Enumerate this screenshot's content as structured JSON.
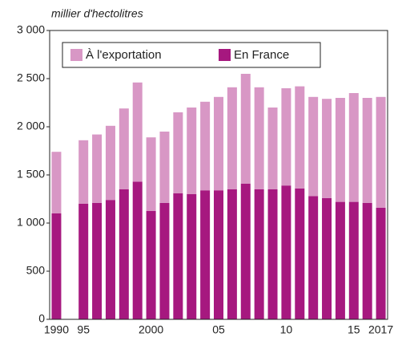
{
  "chart_data": {
    "type": "stacked_bar",
    "y_label": "millier d'hectolitres",
    "categories": [
      "1990",
      null,
      "95",
      null,
      null,
      null,
      null,
      "2000",
      null,
      null,
      null,
      null,
      "05",
      null,
      null,
      null,
      null,
      "10",
      null,
      null,
      null,
      null,
      "15",
      null,
      "2017"
    ],
    "series": [
      {
        "name": "À l'exportation",
        "color": "#d897c5",
        "values": [
          640,
          null,
          660,
          710,
          770,
          840,
          1030,
          765,
          740,
          840,
          900,
          920,
          970,
          1060,
          1140,
          1060,
          850,
          1010,
          1060,
          1030,
          1030,
          1080,
          1130,
          1090,
          1150
        ]
      },
      {
        "name": "En France",
        "color": "#a6187f",
        "values": [
          1100,
          null,
          1200,
          1210,
          1240,
          1350,
          1430,
          1125,
          1210,
          1310,
          1300,
          1340,
          1340,
          1350,
          1410,
          1350,
          1350,
          1390,
          1360,
          1280,
          1260,
          1220,
          1220,
          1210,
          1160
        ]
      }
    ],
    "ylim": [
      0,
      3000
    ],
    "yticks": [
      0,
      500,
      {
        "value": 1000,
        "label": "1 000"
      },
      {
        "value": 1500,
        "label": "1 500"
      },
      {
        "value": 2000,
        "label": "2 000"
      },
      {
        "value": 2500,
        "label": "2 500"
      },
      {
        "value": 3000,
        "label": "3 000"
      }
    ],
    "grid": false,
    "legend": "top-left"
  }
}
